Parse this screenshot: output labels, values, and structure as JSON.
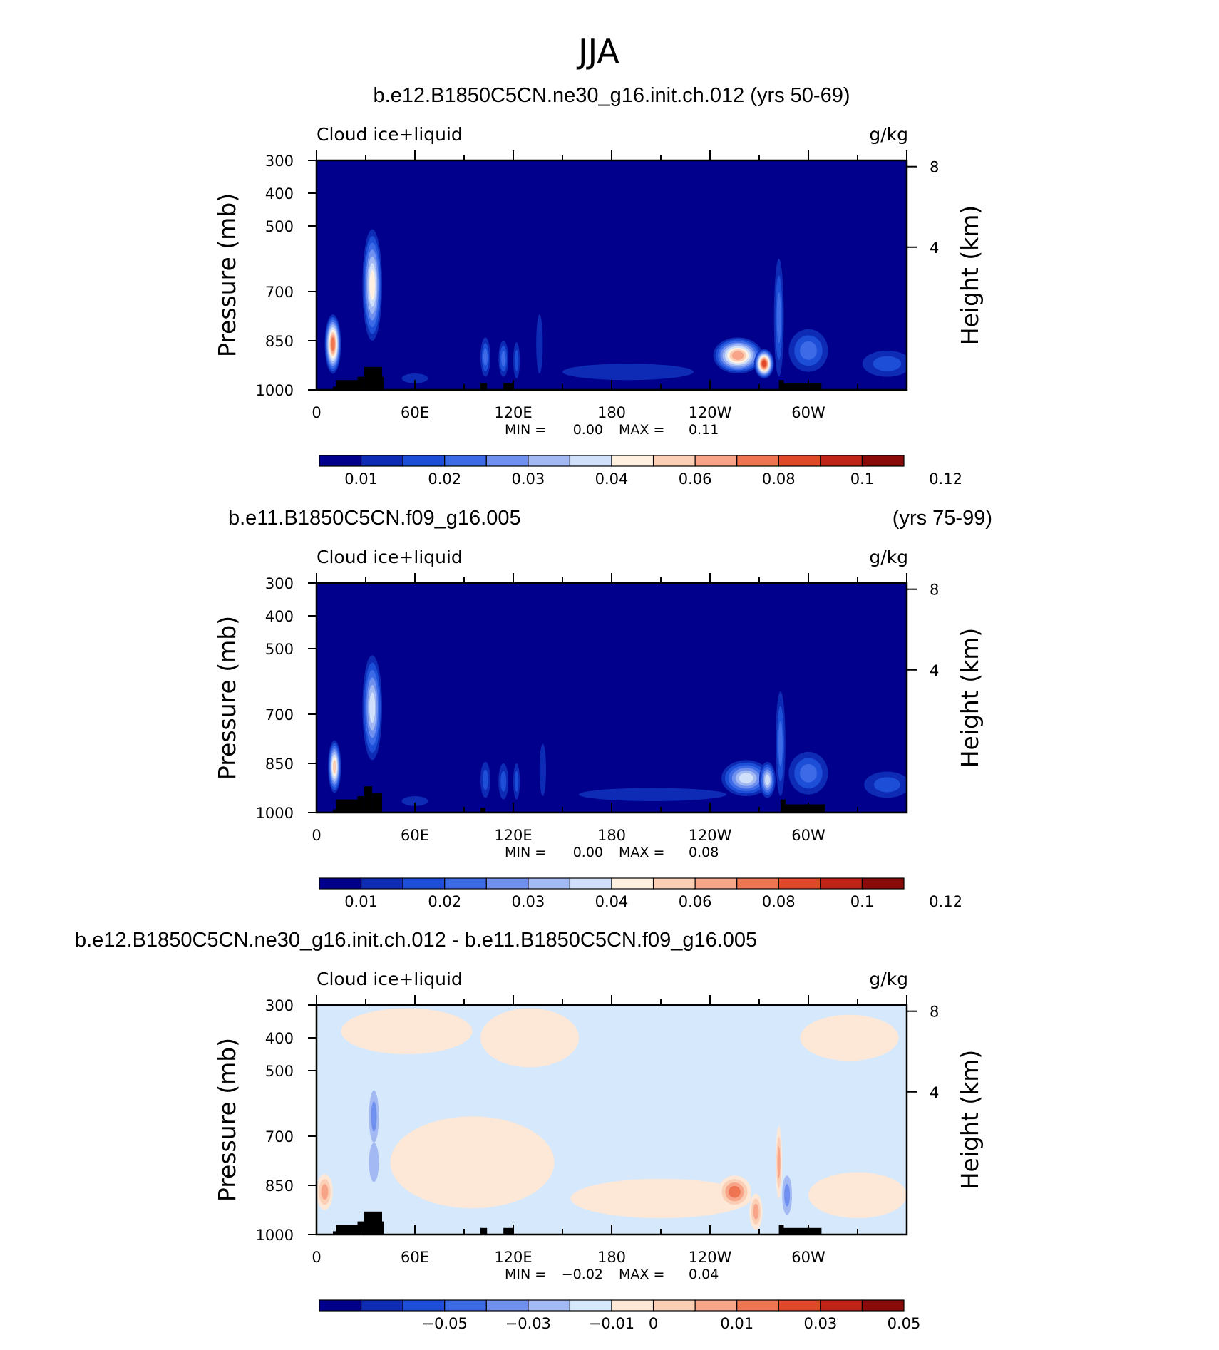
{
  "title": "JJA",
  "colors": {
    "cloud_scale": [
      "#00008c",
      "#0d2bb4",
      "#1c4ed8",
      "#3d6ae6",
      "#6f90ee",
      "#a3b9f3",
      "#d0e0fa",
      "#fff0e0",
      "#fbcfb5",
      "#f7a488",
      "#ef7552",
      "#e0482a",
      "#c02418",
      "#8a0a0a"
    ],
    "diff_scale": [
      "#00008c",
      "#0d2bb4",
      "#1c4ed8",
      "#3d6ae6",
      "#6f90ee",
      "#a3b9f3",
      "#d6e8fb",
      "#fde8d8",
      "#fbcfb5",
      "#f7a488",
      "#ef7552",
      "#e0482a",
      "#c02418",
      "#8a0a0a"
    ],
    "topography": "#000000",
    "frame": "#000000"
  },
  "chart_data": [
    {
      "type": "heatmap",
      "title": "b.e12.B1850C5CN.ne30_g16.init.ch.012 (yrs 50-69)",
      "title_right": "",
      "left_label": "Cloud ice+liquid",
      "right_label": "g/kg",
      "ylabel": "Pressure (mb)",
      "ylabel_right": "Height (km)",
      "x_ticks": [
        "0",
        "60E",
        "120E",
        "180",
        "120W",
        "60W"
      ],
      "x_tick_values": [
        0,
        60,
        120,
        180,
        240,
        300
      ],
      "xlim": [
        0,
        360
      ],
      "y_ticks": [
        "300",
        "400",
        "500",
        "700",
        "850",
        "1000"
      ],
      "y_tick_values": [
        300,
        400,
        500,
        700,
        850,
        1000
      ],
      "ylim": [
        1000,
        300
      ],
      "right_ticks": [
        "8",
        "4"
      ],
      "right_tick_values": [
        8,
        4
      ],
      "min_label": "MIN =",
      "min_value": "0.00",
      "max_label": "MAX =",
      "max_value": "0.11",
      "colorbar_labels": [
        "0.01",
        "0.02",
        "0.03",
        "0.04",
        "0.06",
        "0.08",
        "0.1",
        "0.12"
      ],
      "colorbar_label_boxes": [
        1,
        3,
        5,
        7,
        9,
        11,
        13,
        15
      ],
      "scale": "cloud",
      "background_level": 0,
      "blobs": [
        {
          "lon": 10,
          "p": 860,
          "dlon": 5,
          "dp": 90,
          "level": 10
        },
        {
          "lon": 34,
          "p": 680,
          "dlon": 6,
          "dp": 170,
          "level": 7
        },
        {
          "lon": 103,
          "p": 900,
          "dlon": 3,
          "dp": 60,
          "level": 3
        },
        {
          "lon": 114,
          "p": 905,
          "dlon": 3,
          "dp": 55,
          "level": 3
        },
        {
          "lon": 122,
          "p": 910,
          "dlon": 2,
          "dp": 55,
          "level": 2
        },
        {
          "lon": 136,
          "p": 860,
          "dlon": 2,
          "dp": 90,
          "level": 1
        },
        {
          "lon": 190,
          "p": 945,
          "dlon": 40,
          "dp": 25,
          "level": 1
        },
        {
          "lon": 257,
          "p": 895,
          "dlon": 15,
          "dp": 55,
          "level": 9
        },
        {
          "lon": 273,
          "p": 920,
          "dlon": 6,
          "dp": 45,
          "level": 11
        },
        {
          "lon": 282,
          "p": 780,
          "dlon": 3,
          "dp": 180,
          "level": 3
        },
        {
          "lon": 300,
          "p": 880,
          "dlon": 12,
          "dp": 65,
          "level": 3
        },
        {
          "lon": 348,
          "p": 920,
          "dlon": 15,
          "dp": 40,
          "level": 2
        },
        {
          "lon": 60,
          "p": 965,
          "dlon": 8,
          "dp": 15,
          "level": 1
        }
      ],
      "topography": [
        {
          "lon0": 10,
          "lon1": 15,
          "p": 990
        },
        {
          "lon0": 12,
          "lon1": 25,
          "p": 970
        },
        {
          "lon0": 25,
          "lon1": 29,
          "p": 960
        },
        {
          "lon0": 29,
          "lon1": 40,
          "p": 930
        },
        {
          "lon0": 40,
          "lon1": 41,
          "p": 960
        },
        {
          "lon0": 100,
          "lon1": 104,
          "p": 980
        },
        {
          "lon0": 114,
          "lon1": 120,
          "p": 980
        },
        {
          "lon0": 282,
          "lon1": 285,
          "p": 970
        },
        {
          "lon0": 285,
          "lon1": 308,
          "p": 980
        }
      ]
    },
    {
      "type": "heatmap",
      "title": "b.e11.B1850C5CN.f09_g16.005",
      "title_right": "(yrs 75-99)",
      "left_label": "Cloud ice+liquid",
      "right_label": "g/kg",
      "ylabel": "Pressure (mb)",
      "ylabel_right": "Height (km)",
      "x_ticks": [
        "0",
        "60E",
        "120E",
        "180",
        "120W",
        "60W"
      ],
      "x_tick_values": [
        0,
        60,
        120,
        180,
        240,
        300
      ],
      "xlim": [
        0,
        360
      ],
      "y_ticks": [
        "300",
        "400",
        "500",
        "700",
        "850",
        "1000"
      ],
      "y_tick_values": [
        300,
        400,
        500,
        700,
        850,
        1000
      ],
      "ylim": [
        1000,
        300
      ],
      "right_ticks": [
        "8",
        "4"
      ],
      "right_tick_values": [
        8,
        4
      ],
      "min_label": "MIN =",
      "min_value": "0.00",
      "max_label": "MAX =",
      "max_value": "0.08",
      "colorbar_labels": [
        "0.01",
        "0.02",
        "0.03",
        "0.04",
        "0.06",
        "0.08",
        "0.1",
        "0.12"
      ],
      "colorbar_label_boxes": [
        1,
        3,
        5,
        7,
        9,
        11,
        13,
        15
      ],
      "scale": "cloud",
      "background_level": 0,
      "blobs": [
        {
          "lon": 11,
          "p": 860,
          "dlon": 4,
          "dp": 80,
          "level": 8
        },
        {
          "lon": 34,
          "p": 680,
          "dlon": 6,
          "dp": 160,
          "level": 6
        },
        {
          "lon": 103,
          "p": 900,
          "dlon": 3,
          "dp": 55,
          "level": 2
        },
        {
          "lon": 114,
          "p": 905,
          "dlon": 3,
          "dp": 55,
          "level": 2
        },
        {
          "lon": 122,
          "p": 905,
          "dlon": 2,
          "dp": 55,
          "level": 2
        },
        {
          "lon": 138,
          "p": 870,
          "dlon": 2,
          "dp": 80,
          "level": 1
        },
        {
          "lon": 205,
          "p": 945,
          "dlon": 45,
          "dp": 20,
          "level": 1
        },
        {
          "lon": 262,
          "p": 895,
          "dlon": 15,
          "dp": 55,
          "level": 6
        },
        {
          "lon": 275,
          "p": 900,
          "dlon": 5,
          "dp": 55,
          "level": 6
        },
        {
          "lon": 283,
          "p": 790,
          "dlon": 3,
          "dp": 160,
          "level": 3
        },
        {
          "lon": 300,
          "p": 880,
          "dlon": 12,
          "dp": 65,
          "level": 3
        },
        {
          "lon": 348,
          "p": 915,
          "dlon": 14,
          "dp": 40,
          "level": 2
        },
        {
          "lon": 60,
          "p": 965,
          "dlon": 8,
          "dp": 15,
          "level": 1
        }
      ],
      "topography": [
        {
          "lon0": 10,
          "lon1": 12,
          "p": 990
        },
        {
          "lon0": 12,
          "lon1": 25,
          "p": 960
        },
        {
          "lon0": 25,
          "lon1": 29,
          "p": 950
        },
        {
          "lon0": 29,
          "lon1": 34,
          "p": 920
        },
        {
          "lon0": 34,
          "lon1": 40,
          "p": 940
        },
        {
          "lon0": 100,
          "lon1": 103,
          "p": 985
        },
        {
          "lon0": 283,
          "lon1": 286,
          "p": 960
        },
        {
          "lon0": 286,
          "lon1": 310,
          "p": 975
        }
      ]
    },
    {
      "type": "heatmap",
      "title": "b.e12.B1850C5CN.ne30_g16.init.ch.012 - b.e11.B1850C5CN.f09_g16.005",
      "title_right": "",
      "left_label": "Cloud ice+liquid",
      "right_label": "g/kg",
      "ylabel": "Pressure (mb)",
      "ylabel_right": "Height (km)",
      "x_ticks": [
        "0",
        "60E",
        "120E",
        "180",
        "120W",
        "60W"
      ],
      "x_tick_values": [
        0,
        60,
        120,
        180,
        240,
        300
      ],
      "xlim": [
        0,
        360
      ],
      "y_ticks": [
        "300",
        "400",
        "500",
        "700",
        "850",
        "1000"
      ],
      "y_tick_values": [
        300,
        400,
        500,
        700,
        850,
        1000
      ],
      "ylim": [
        1000,
        300
      ],
      "right_ticks": [
        "8",
        "4"
      ],
      "right_tick_values": [
        8,
        4
      ],
      "min_label": "MIN =",
      "min_value": "−0.02",
      "max_label": "MAX =",
      "max_value": "0.04",
      "colorbar_labels": [
        "−0.05",
        "−0.03",
        "−0.01",
        "0",
        "0.01",
        "0.03",
        "0.05"
      ],
      "colorbar_label_boxes": [
        3,
        5,
        7,
        8,
        10,
        12,
        14
      ],
      "scale": "diff",
      "background_level": 6,
      "blobs": [
        {
          "lon": 55,
          "p": 380,
          "dlon": 40,
          "dp": 70,
          "level": 7
        },
        {
          "lon": 130,
          "p": 400,
          "dlon": 30,
          "dp": 90,
          "level": 7
        },
        {
          "lon": 325,
          "p": 400,
          "dlon": 30,
          "dp": 70,
          "level": 7
        },
        {
          "lon": 95,
          "p": 780,
          "dlon": 50,
          "dp": 140,
          "level": 7
        },
        {
          "lon": 210,
          "p": 890,
          "dlon": 55,
          "dp": 60,
          "level": 7
        },
        {
          "lon": 330,
          "p": 880,
          "dlon": 30,
          "dp": 70,
          "level": 7
        },
        {
          "lon": 5,
          "p": 870,
          "dlon": 5,
          "dp": 55,
          "level": 9
        },
        {
          "lon": 35,
          "p": 640,
          "dlon": 3,
          "dp": 80,
          "level": 4
        },
        {
          "lon": 35,
          "p": 780,
          "dlon": 3,
          "dp": 60,
          "level": 5
        },
        {
          "lon": 255,
          "p": 870,
          "dlon": 10,
          "dp": 50,
          "level": 10
        },
        {
          "lon": 268,
          "p": 930,
          "dlon": 4,
          "dp": 55,
          "level": 9
        },
        {
          "lon": 282,
          "p": 780,
          "dlon": 2,
          "dp": 110,
          "level": 9
        },
        {
          "lon": 287,
          "p": 880,
          "dlon": 3,
          "dp": 60,
          "level": 4
        }
      ],
      "topography": [
        {
          "lon0": 10,
          "lon1": 15,
          "p": 990
        },
        {
          "lon0": 12,
          "lon1": 25,
          "p": 970
        },
        {
          "lon0": 25,
          "lon1": 29,
          "p": 960
        },
        {
          "lon0": 29,
          "lon1": 40,
          "p": 930
        },
        {
          "lon0": 40,
          "lon1": 41,
          "p": 960
        },
        {
          "lon0": 100,
          "lon1": 104,
          "p": 980
        },
        {
          "lon0": 114,
          "lon1": 120,
          "p": 980
        },
        {
          "lon0": 282,
          "lon1": 285,
          "p": 970
        },
        {
          "lon0": 285,
          "lon1": 308,
          "p": 980
        }
      ]
    }
  ]
}
